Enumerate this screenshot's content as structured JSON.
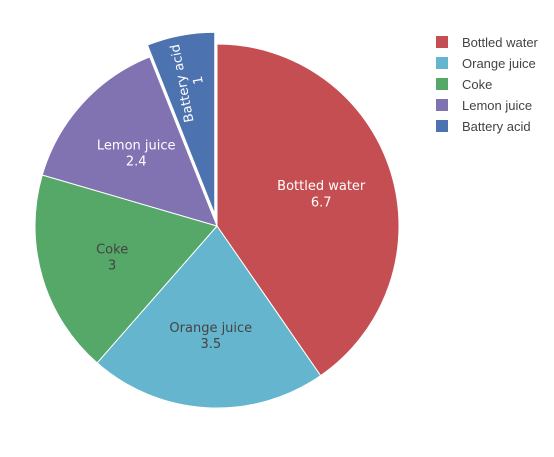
{
  "chart_data": {
    "type": "pie",
    "title": "",
    "categories": [
      "Bottled water",
      "Orange juice",
      "Coke",
      "Lemon juice",
      "Battery acid"
    ],
    "values": [
      6.7,
      3.5,
      3,
      2.4,
      1
    ],
    "colors": [
      "#c44e52",
      "#64b5cd",
      "#55a868",
      "#8172b2",
      "#4c72b0"
    ],
    "label_colors": [
      "#ffffff",
      "#444444",
      "#444444",
      "#ffffff",
      "#ffffff"
    ],
    "pulled": [
      "Battery acid"
    ],
    "sort": "descending",
    "direction": "clockwise",
    "start": "top",
    "legend_position": "top-right"
  }
}
